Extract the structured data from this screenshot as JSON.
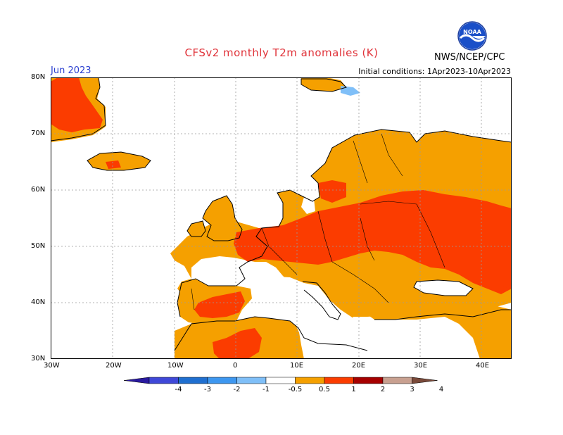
{
  "title": "CFSv2 monthly T2m anomalies (K)",
  "month": "Jun 2023",
  "initial_conditions": "Initial conditions: 1Apr2023-10Apr2023",
  "agency": "NWS/NCEP/CPC",
  "logo_icon": "noaa-logo-icon",
  "logo_text": "NOAA",
  "lat_labels": [
    "80N",
    "70N",
    "60N",
    "50N",
    "40N",
    "30N"
  ],
  "lon_labels": [
    "30W",
    "20W",
    "10W",
    "0",
    "10E",
    "20E",
    "30E",
    "40E"
  ],
  "legend": {
    "labels": [
      "-4",
      "-3",
      "-2",
      "-1",
      "-0.5",
      "0.5",
      "1",
      "2",
      "3",
      "4"
    ],
    "colors": [
      "#2a1aa0",
      "#3f48d8",
      "#1f6fd0",
      "#3d97f0",
      "#7fbff8",
      "#ffffff",
      "#f5a000",
      "#fb3c00",
      "#a60000",
      "#c8a090",
      "#7a4a3a"
    ]
  },
  "colors": {
    "orange": "#f5a000",
    "red": "#fb3c00",
    "light_blue": "#7fbff8",
    "coast": "#000000",
    "grid": "#9a9a9a"
  }
}
